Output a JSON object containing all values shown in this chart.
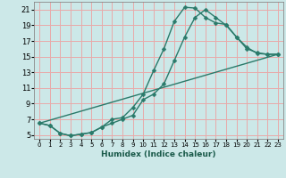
{
  "title": "",
  "xlabel": "Humidex (Indice chaleur)",
  "bg_color": "#cce8e8",
  "grid_color": "#e8aaaa",
  "line_color": "#2a7a6a",
  "xlim": [
    -0.5,
    23.5
  ],
  "ylim": [
    4.5,
    22
  ],
  "yticks": [
    5,
    7,
    9,
    11,
    13,
    15,
    17,
    19,
    21
  ],
  "xticks": [
    0,
    1,
    2,
    3,
    4,
    5,
    6,
    7,
    8,
    9,
    10,
    11,
    12,
    13,
    14,
    15,
    16,
    17,
    18,
    19,
    20,
    21,
    22,
    23
  ],
  "line1_x": [
    0,
    1,
    2,
    3,
    4,
    5,
    6,
    7,
    8,
    9,
    10,
    11,
    12,
    13,
    14,
    15,
    16,
    17,
    18,
    19,
    20,
    21,
    22,
    23
  ],
  "line1_y": [
    6.5,
    6.2,
    5.2,
    4.9,
    5.1,
    5.3,
    6.0,
    7.0,
    7.2,
    8.5,
    10.2,
    13.2,
    16.0,
    19.5,
    21.3,
    21.2,
    20.0,
    19.3,
    19.1,
    17.5,
    16.2,
    15.4,
    15.3,
    15.3
  ],
  "line2_x": [
    0,
    1,
    2,
    3,
    4,
    5,
    6,
    7,
    8,
    9,
    10,
    11,
    12,
    13,
    14,
    15,
    16,
    17,
    18,
    19,
    20,
    21,
    22,
    23
  ],
  "line2_y": [
    6.5,
    6.2,
    5.2,
    4.9,
    5.1,
    5.3,
    6.0,
    6.5,
    7.0,
    7.5,
    9.5,
    10.2,
    11.5,
    14.5,
    17.5,
    20.0,
    21.0,
    20.0,
    19.0,
    17.5,
    16.0,
    15.5,
    15.3,
    15.3
  ],
  "line3_x": [
    0,
    23
  ],
  "line3_y": [
    6.5,
    15.3
  ],
  "marker_size": 2.5,
  "linewidth": 1.0
}
